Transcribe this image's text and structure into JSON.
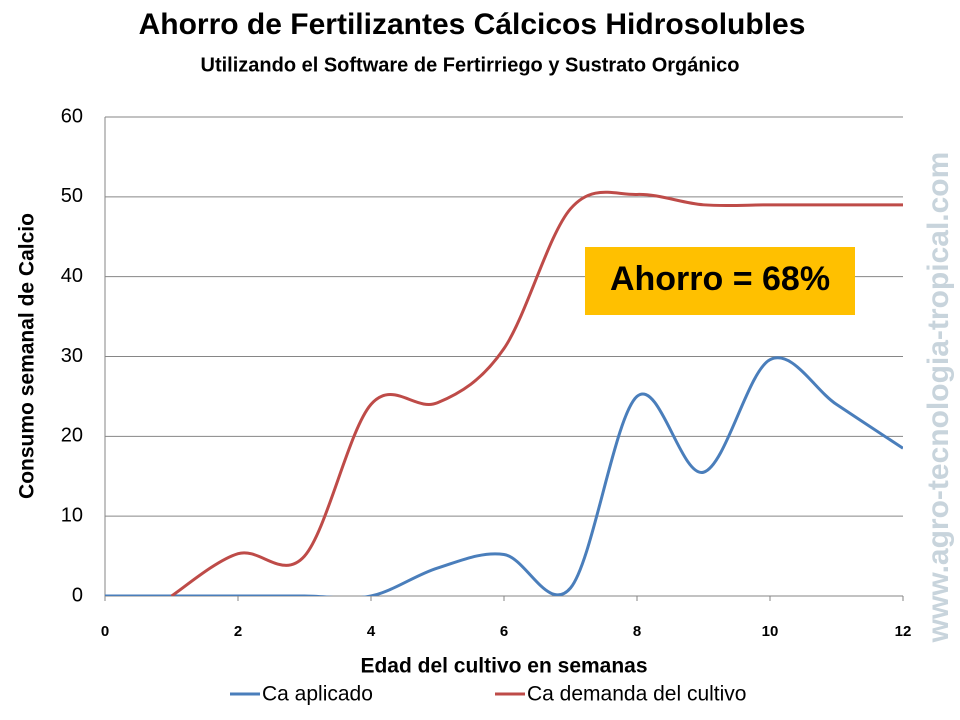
{
  "chart_data": {
    "type": "line",
    "title": "Ahorro de Fertilizantes Cálcicos  Hidrosolubles",
    "subtitle": "Utilizando el Software de Fertirriego y Sustrato Orgánico",
    "x_label": "Edad del cultivo  en semanas",
    "y_label": "Consumo semanal de Calcio",
    "annotation": "Ahorro =  68%",
    "watermark": "www.agro-tecnologia-tropical.com",
    "x": [
      0,
      1,
      2,
      3,
      4,
      5,
      6,
      7,
      8,
      9,
      10,
      11,
      12
    ],
    "series": [
      {
        "name": "Ca aplicado",
        "color": "#4a7ebb",
        "values": [
          0,
          0,
          0,
          0,
          0,
          3.5,
          5.2,
          1,
          25,
          15.5,
          29.6,
          24,
          18.5
        ]
      },
      {
        "name": "Ca demanda del cultivo",
        "color": "#be4b48",
        "values": [
          null,
          0,
          5.3,
          5,
          24,
          24.2,
          31,
          48.5,
          50.3,
          49,
          49,
          49,
          49
        ]
      }
    ],
    "xlim": [
      0,
      12
    ],
    "xticks": [
      0,
      2,
      4,
      6,
      8,
      10,
      12
    ],
    "ylim": [
      0,
      60
    ],
    "yticks": [
      0,
      10,
      20,
      30,
      40,
      50,
      60
    ],
    "grid": true,
    "legend": "bottom"
  }
}
